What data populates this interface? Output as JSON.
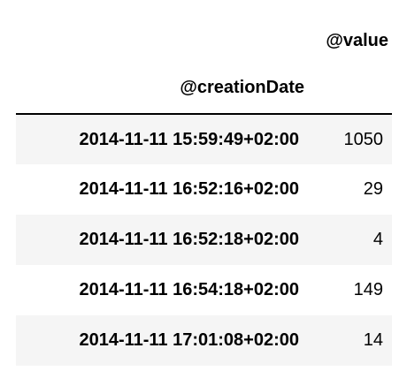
{
  "table": {
    "value_column_header": "@value",
    "index_header": "@creationDate",
    "rows": [
      {
        "index": "2014-11-11 15:59:49+02:00",
        "value": "1050"
      },
      {
        "index": "2014-11-11 16:52:16+02:00",
        "value": "29"
      },
      {
        "index": "2014-11-11 16:52:18+02:00",
        "value": "4"
      },
      {
        "index": "2014-11-11 16:54:18+02:00",
        "value": "149"
      },
      {
        "index": "2014-11-11 17:01:08+02:00",
        "value": "14"
      }
    ]
  },
  "colors": {
    "text": "#000000",
    "striped_row": "#f5f5f5",
    "header_rule": "#000000"
  }
}
